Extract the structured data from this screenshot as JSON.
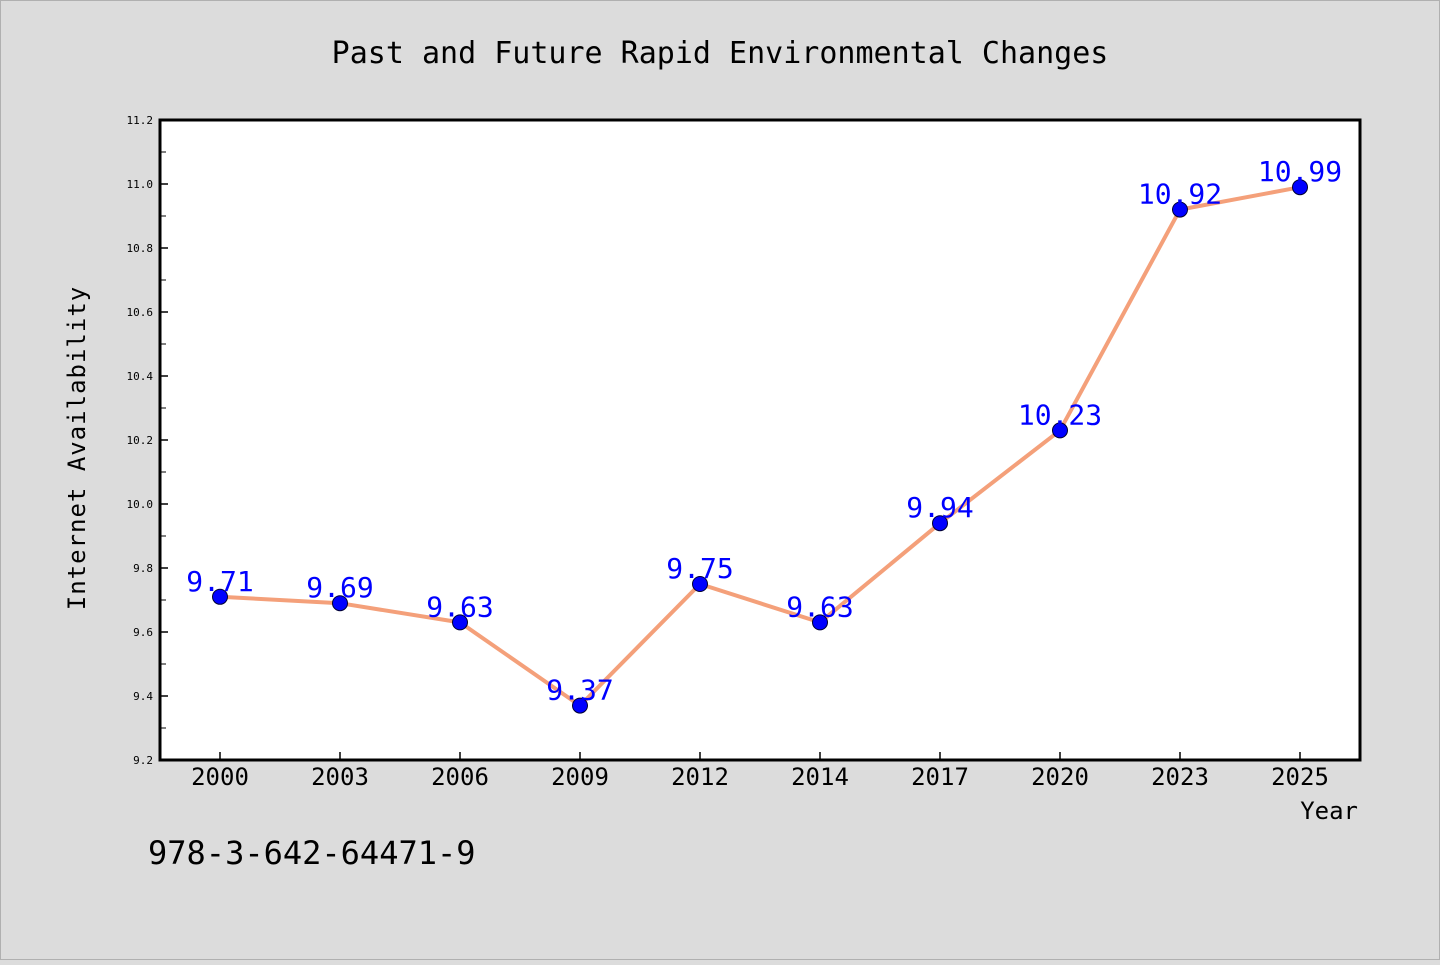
{
  "chart_data": {
    "type": "line",
    "title": "Past and Future Rapid Environmental Changes",
    "xlabel": "Year",
    "ylabel": "Internet Availability",
    "categories": [
      "2000",
      "2003",
      "2006",
      "2009",
      "2012",
      "2014",
      "2017",
      "2020",
      "2023",
      "2025"
    ],
    "series": [
      {
        "values": [
          9.71,
          9.69,
          9.63,
          9.37,
          9.75,
          9.63,
          9.94,
          10.23,
          10.92,
          10.99
        ],
        "line_color": "#f4a07a",
        "marker_color": "#0000ff",
        "label_color": "#0000ff"
      }
    ],
    "data_labels": [
      "9.71",
      "9.69",
      "9.63",
      "9.37",
      "9.75",
      "9.63",
      "9.94",
      "10.23",
      "10.92",
      "10.99"
    ],
    "ylim": [
      9.2,
      11.2
    ],
    "yticks": [
      9.2,
      9.4,
      9.6,
      9.8,
      10.0,
      10.2,
      10.4,
      10.6,
      10.8,
      11.0,
      11.2
    ],
    "ytick_labels": [
      "9.2",
      "9.4",
      "9.6",
      "9.8",
      "10.0",
      "10.2",
      "10.4",
      "10.6",
      "10.8",
      "11.0",
      "11.2"
    ],
    "grid": false,
    "annotation": "978-3-642-64471-9"
  }
}
